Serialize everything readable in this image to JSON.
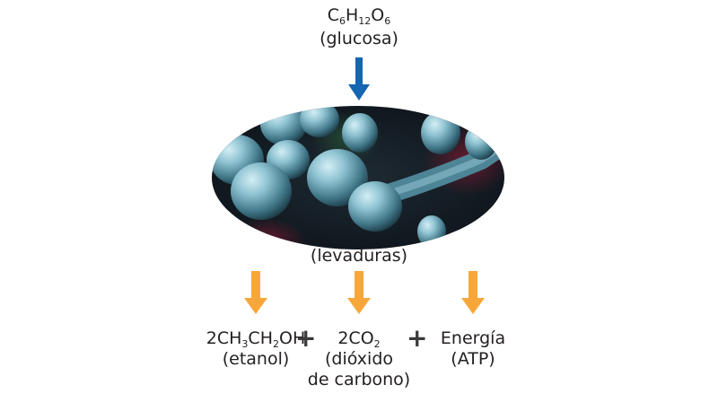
{
  "input": {
    "formula_parts": [
      "C",
      "6",
      "H",
      "12",
      "O",
      "6"
    ],
    "name": "(glucosa)"
  },
  "organism": {
    "label": "(levaduras)"
  },
  "products": [
    {
      "formula_parts": [
        "2CH",
        "3",
        "CH",
        "2",
        "OH"
      ],
      "name": "(etanol)"
    },
    {
      "formula_parts": [
        "2CO",
        "2"
      ],
      "name_line1": "(dióxido",
      "name_line2": "de carbono)"
    },
    {
      "formula": "Energía",
      "name": "(ATP)"
    }
  ],
  "operators": [
    "+",
    "+"
  ],
  "colors": {
    "input_arrow": "#1565b0",
    "product_arrow": "#f7a73a",
    "cell": "#6ea2b4",
    "background_dark": "#101820"
  },
  "icons": {
    "yeast_image": "yeast-cells-microscopy"
  }
}
